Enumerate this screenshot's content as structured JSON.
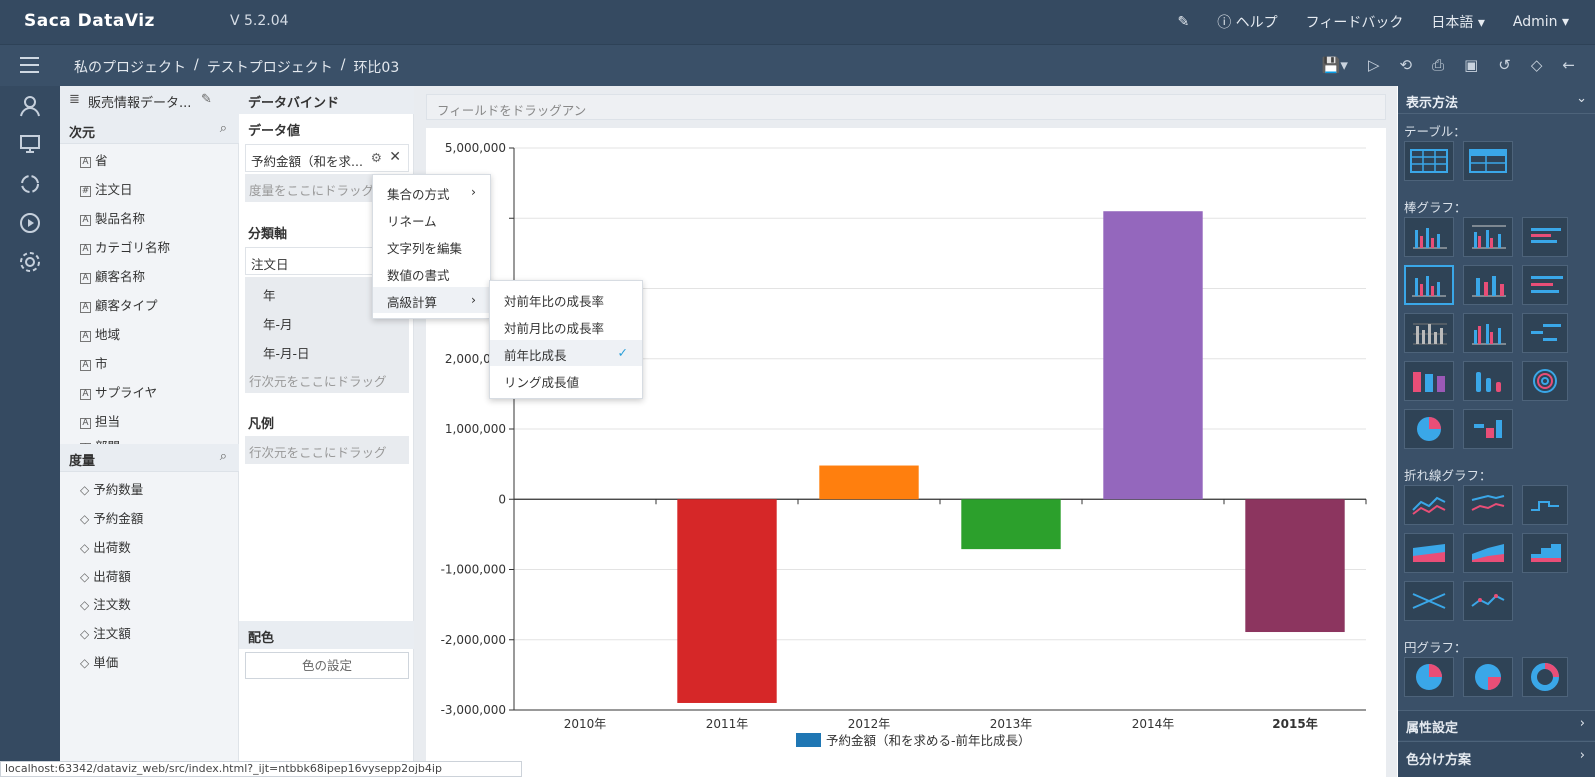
{
  "app": {
    "logo": "Saca DataViz",
    "version": "V 5.2.04"
  },
  "topbar": {
    "help": "ヘルプ",
    "feedback": "フィードバック",
    "language": "日本語",
    "user": "Admin"
  },
  "breadcrumb": [
    "私のプロジェクト",
    "/",
    "テストプロジェクト",
    "/",
    "环比03"
  ],
  "fields": {
    "dataset": "販売情報データ...",
    "dimensions_label": "次元",
    "dimensions": [
      "省",
      "注文日",
      "製品名称",
      "カテゴリ名称",
      "顧客名称",
      "顧客タイプ",
      "地域",
      "市",
      "サプライヤ",
      "担当",
      "部門"
    ],
    "measures_label": "度量",
    "measures": [
      "予約数量",
      "予約金額",
      "出荷数",
      "出荷額",
      "注文数",
      "注文額",
      "単価"
    ]
  },
  "binding": {
    "title": "データバインド",
    "values_label": "データ値",
    "value_chip": "予約金額（和を求...",
    "measure_drop": "度量をここにドラッグ",
    "axis_label": "分類軸",
    "axis_chip": "注文日",
    "axis_options": [
      "年",
      "年-月",
      "年-月-日"
    ],
    "dim_drop": "行次元をここにドラッグ",
    "legend_label": "凡例",
    "legend_drop": "行次元をここにドラッグ",
    "color_label": "配色",
    "color_button": "色の設定"
  },
  "menu": {
    "items": [
      "集合の方式",
      "リネーム",
      "文字列を編集",
      "数値の書式",
      "高級計算"
    ],
    "submenu": [
      "対前年比の成長率",
      "対前月比の成長率",
      "前年比成長",
      "リング成長値"
    ]
  },
  "chart_area": {
    "drag_hint": "フィールドをドラッグアン"
  },
  "chart_data": {
    "type": "bar",
    "categories": [
      "2010年",
      "2011年",
      "2012年",
      "2013年",
      "2014年",
      "2015年"
    ],
    "values": [
      0,
      -2900000,
      480000,
      -710000,
      4100000,
      -1890000
    ],
    "colors": [
      "#1f77b4",
      "#d62728",
      "#ff7f0e",
      "#2ca02c",
      "#9467bd",
      "#8c355f"
    ],
    "yticks": [
      5000000,
      4000000,
      3000000,
      2000000,
      1000000,
      0,
      -1000000,
      -2000000,
      -3000000
    ],
    "ytick_labels": [
      "5,000,000",
      "",
      "",
      "2,000,000",
      "1,000,000",
      "0",
      "-1,000,000",
      "-2,000,000",
      "-3,000,000"
    ],
    "ylim": [
      -3000000,
      5000000
    ],
    "legend": "予約金額（和を求める-前年比成長）",
    "legend_color": "#1f77b4"
  },
  "right_panel": {
    "title": "表示方法",
    "table_label": "テーブル：",
    "bar_label": "棒グラフ：",
    "line_label": "折れ線グラフ：",
    "pie_label": "円グラフ：",
    "prop_label": "属性設定",
    "color_scheme_label": "色分け方案"
  },
  "statusbar": {
    "url": "localhost:63342/dataviz_web/src/index.html?_ijt=ntbbk68ipep16vysepp2ojb4ip"
  }
}
